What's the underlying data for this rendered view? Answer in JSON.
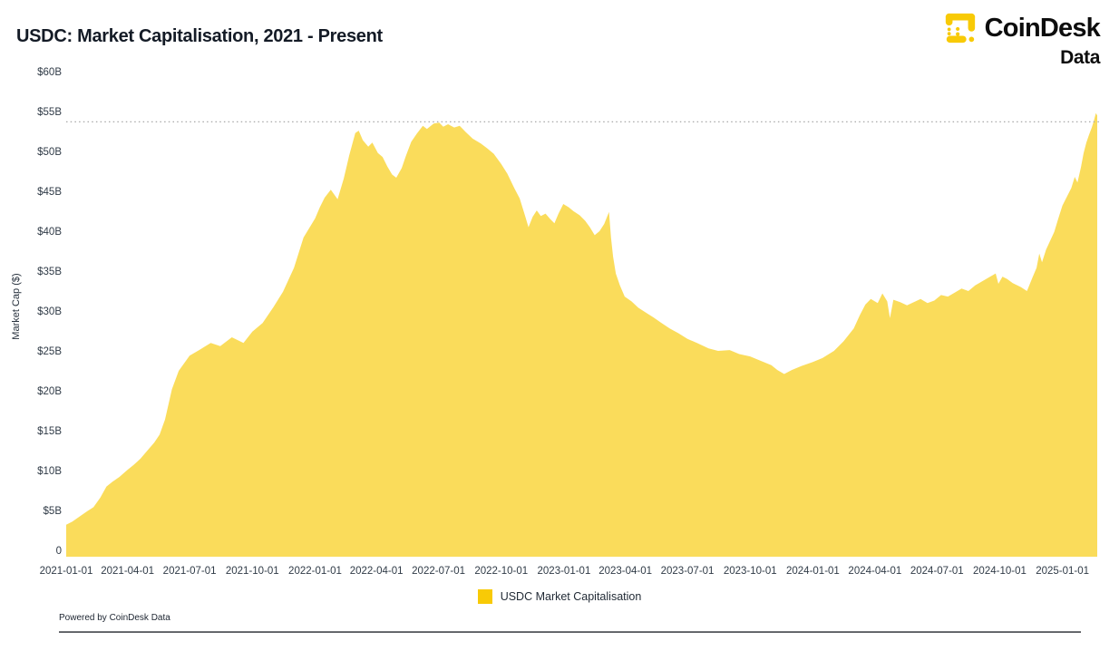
{
  "header": {
    "title": "USDC: Market Capitalisation, 2021 - Present",
    "brand": {
      "name": "CoinDesk",
      "sub": "Data",
      "logo_color": "#f8ca06",
      "text_color": "#0d0d0d"
    }
  },
  "footer": {
    "powered_by": "Powered by CoinDesk Data"
  },
  "chart_data": {
    "type": "area",
    "title": "USDC: Market Capitalisation, 2021 - Present",
    "xlabel": "",
    "ylabel": "Market Cap ($)",
    "ylim": [
      0,
      60
    ],
    "y_tick_step": 5,
    "y_tick_format": "$%dB",
    "y_zero_label": "0",
    "grid": false,
    "legend_position": "bottom",
    "reference_line": {
      "value": 54.5,
      "style": "dotted",
      "color": "#a8a8a8"
    },
    "x_ticks": [
      "2021-01-01",
      "2021-04-01",
      "2021-07-01",
      "2021-10-01",
      "2022-01-01",
      "2022-04-01",
      "2022-07-01",
      "2022-10-01",
      "2023-01-01",
      "2023-04-01",
      "2023-07-01",
      "2023-10-01",
      "2024-01-01",
      "2024-04-01",
      "2024-07-01",
      "2024-10-01",
      "2025-01-01"
    ],
    "series": [
      {
        "name": "USDC Market Capitalisation",
        "color": "#f8ca06",
        "fill_opacity": 0.66,
        "unit": "billion USD",
        "points": [
          [
            "2021-01-01",
            4.0
          ],
          [
            "2021-01-10",
            4.4
          ],
          [
            "2021-01-20",
            5.0
          ],
          [
            "2021-02-01",
            5.7
          ],
          [
            "2021-02-10",
            6.2
          ],
          [
            "2021-02-20",
            7.4
          ],
          [
            "2021-03-01",
            8.8
          ],
          [
            "2021-03-10",
            9.4
          ],
          [
            "2021-03-20",
            10.0
          ],
          [
            "2021-04-01",
            10.9
          ],
          [
            "2021-04-10",
            11.5
          ],
          [
            "2021-04-20",
            12.3
          ],
          [
            "2021-05-01",
            13.4
          ],
          [
            "2021-05-10",
            14.3
          ],
          [
            "2021-05-18",
            15.3
          ],
          [
            "2021-05-26",
            17.2
          ],
          [
            "2021-06-05",
            21.0
          ],
          [
            "2021-06-15",
            23.3
          ],
          [
            "2021-07-01",
            25.2
          ],
          [
            "2021-07-15",
            25.9
          ],
          [
            "2021-08-01",
            26.8
          ],
          [
            "2021-08-15",
            26.4
          ],
          [
            "2021-09-01",
            27.5
          ],
          [
            "2021-09-18",
            26.8
          ],
          [
            "2021-10-01",
            28.2
          ],
          [
            "2021-10-16",
            29.3
          ],
          [
            "2021-11-01",
            31.3
          ],
          [
            "2021-11-15",
            33.2
          ],
          [
            "2021-12-01",
            36.2
          ],
          [
            "2021-12-15",
            40.0
          ],
          [
            "2022-01-01",
            42.4
          ],
          [
            "2022-01-08",
            43.8
          ],
          [
            "2022-01-15",
            45.0
          ],
          [
            "2022-01-24",
            46.0
          ],
          [
            "2022-02-03",
            44.8
          ],
          [
            "2022-02-12",
            47.4
          ],
          [
            "2022-02-20",
            50.3
          ],
          [
            "2022-03-01",
            53.1
          ],
          [
            "2022-03-06",
            53.4
          ],
          [
            "2022-03-12",
            52.2
          ],
          [
            "2022-03-20",
            51.4
          ],
          [
            "2022-03-26",
            51.9
          ],
          [
            "2022-04-03",
            50.6
          ],
          [
            "2022-04-10",
            50.1
          ],
          [
            "2022-04-17",
            48.9
          ],
          [
            "2022-04-24",
            47.9
          ],
          [
            "2022-04-30",
            47.5
          ],
          [
            "2022-05-08",
            48.7
          ],
          [
            "2022-05-14",
            50.2
          ],
          [
            "2022-05-22",
            52.0
          ],
          [
            "2022-05-30",
            53.0
          ],
          [
            "2022-06-08",
            54.0
          ],
          [
            "2022-06-14",
            53.6
          ],
          [
            "2022-06-24",
            54.3
          ],
          [
            "2022-07-02",
            54.4
          ],
          [
            "2022-07-08",
            53.9
          ],
          [
            "2022-07-15",
            54.2
          ],
          [
            "2022-07-24",
            53.8
          ],
          [
            "2022-08-01",
            54.0
          ],
          [
            "2022-08-10",
            53.2
          ],
          [
            "2022-08-20",
            52.4
          ],
          [
            "2022-09-01",
            51.8
          ],
          [
            "2022-09-10",
            51.2
          ],
          [
            "2022-09-20",
            50.5
          ],
          [
            "2022-10-01",
            49.2
          ],
          [
            "2022-10-10",
            48.0
          ],
          [
            "2022-10-20",
            46.2
          ],
          [
            "2022-10-28",
            44.9
          ],
          [
            "2022-11-05",
            42.7
          ],
          [
            "2022-11-10",
            41.3
          ],
          [
            "2022-11-16",
            42.6
          ],
          [
            "2022-11-22",
            43.4
          ],
          [
            "2022-11-28",
            42.7
          ],
          [
            "2022-12-05",
            43.0
          ],
          [
            "2022-12-12",
            42.3
          ],
          [
            "2022-12-18",
            41.8
          ],
          [
            "2022-12-24",
            43.0
          ],
          [
            "2022-12-31",
            44.2
          ],
          [
            "2023-01-08",
            43.8
          ],
          [
            "2023-01-15",
            43.3
          ],
          [
            "2023-01-24",
            42.8
          ],
          [
            "2023-02-01",
            42.1
          ],
          [
            "2023-02-08",
            41.3
          ],
          [
            "2023-02-15",
            40.3
          ],
          [
            "2023-02-22",
            40.8
          ],
          [
            "2023-03-01",
            41.7
          ],
          [
            "2023-03-08",
            43.2
          ],
          [
            "2023-03-11",
            40.0
          ],
          [
            "2023-03-14",
            37.6
          ],
          [
            "2023-03-18",
            35.5
          ],
          [
            "2023-03-24",
            34.0
          ],
          [
            "2023-03-31",
            32.6
          ],
          [
            "2023-04-10",
            32.0
          ],
          [
            "2023-04-20",
            31.2
          ],
          [
            "2023-05-01",
            30.6
          ],
          [
            "2023-05-12",
            30.0
          ],
          [
            "2023-05-24",
            29.3
          ],
          [
            "2023-06-05",
            28.6
          ],
          [
            "2023-06-18",
            28.0
          ],
          [
            "2023-07-01",
            27.3
          ],
          [
            "2023-07-15",
            26.8
          ],
          [
            "2023-08-01",
            26.1
          ],
          [
            "2023-08-15",
            25.8
          ],
          [
            "2023-09-01",
            25.9
          ],
          [
            "2023-09-15",
            25.4
          ],
          [
            "2023-10-01",
            25.1
          ],
          [
            "2023-10-15",
            24.6
          ],
          [
            "2023-11-01",
            24.0
          ],
          [
            "2023-11-10",
            23.4
          ],
          [
            "2023-11-20",
            22.9
          ],
          [
            "2023-12-01",
            23.4
          ],
          [
            "2023-12-15",
            23.9
          ],
          [
            "2024-01-01",
            24.4
          ],
          [
            "2024-01-15",
            24.9
          ],
          [
            "2024-02-01",
            25.8
          ],
          [
            "2024-02-15",
            27.0
          ],
          [
            "2024-03-01",
            28.6
          ],
          [
            "2024-03-10",
            30.3
          ],
          [
            "2024-03-18",
            31.6
          ],
          [
            "2024-03-26",
            32.3
          ],
          [
            "2024-04-05",
            31.8
          ],
          [
            "2024-04-12",
            33.0
          ],
          [
            "2024-04-19",
            32.0
          ],
          [
            "2024-04-23",
            29.9
          ],
          [
            "2024-04-28",
            32.2
          ],
          [
            "2024-05-08",
            31.9
          ],
          [
            "2024-05-18",
            31.5
          ],
          [
            "2024-05-28",
            31.9
          ],
          [
            "2024-06-07",
            32.3
          ],
          [
            "2024-06-17",
            31.8
          ],
          [
            "2024-06-27",
            32.1
          ],
          [
            "2024-07-07",
            32.8
          ],
          [
            "2024-07-17",
            32.6
          ],
          [
            "2024-07-27",
            33.1
          ],
          [
            "2024-08-06",
            33.6
          ],
          [
            "2024-08-16",
            33.3
          ],
          [
            "2024-08-26",
            34.0
          ],
          [
            "2024-09-05",
            34.5
          ],
          [
            "2024-09-15",
            35.0
          ],
          [
            "2024-09-25",
            35.5
          ],
          [
            "2024-09-29",
            34.2
          ],
          [
            "2024-10-05",
            35.1
          ],
          [
            "2024-10-12",
            34.8
          ],
          [
            "2024-10-20",
            34.3
          ],
          [
            "2024-11-01",
            33.8
          ],
          [
            "2024-11-10",
            33.3
          ],
          [
            "2024-11-18",
            35.0
          ],
          [
            "2024-11-24",
            36.2
          ],
          [
            "2024-11-28",
            38.0
          ],
          [
            "2024-12-02",
            36.9
          ],
          [
            "2024-12-08",
            38.5
          ],
          [
            "2024-12-14",
            39.6
          ],
          [
            "2024-12-20",
            40.7
          ],
          [
            "2024-12-26",
            42.4
          ],
          [
            "2025-01-01",
            44.0
          ],
          [
            "2025-01-08",
            45.2
          ],
          [
            "2025-01-14",
            46.2
          ],
          [
            "2025-01-19",
            47.6
          ],
          [
            "2025-01-23",
            46.9
          ],
          [
            "2025-01-28",
            48.8
          ],
          [
            "2025-02-01",
            50.6
          ],
          [
            "2025-02-05",
            51.9
          ],
          [
            "2025-02-09",
            52.9
          ],
          [
            "2025-02-13",
            53.8
          ],
          [
            "2025-02-16",
            54.6
          ],
          [
            "2025-02-19",
            55.6
          ],
          [
            "2025-02-21",
            55.3
          ]
        ]
      }
    ]
  }
}
